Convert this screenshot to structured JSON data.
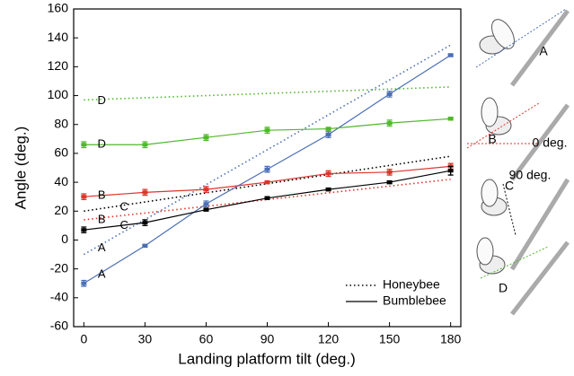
{
  "chart_data": {
    "type": "line",
    "xlabel": "Landing platform tilt (deg.)",
    "ylabel": "Angle (deg.)",
    "xlim": [
      -5,
      185
    ],
    "ylim": [
      -60,
      160
    ],
    "xticks": [
      0,
      30,
      60,
      90,
      120,
      150,
      180
    ],
    "yticks": [
      -60,
      -40,
      -20,
      0,
      20,
      40,
      60,
      80,
      100,
      120,
      140,
      160
    ],
    "legend": [
      {
        "name": "Honeybee",
        "dashed": true
      },
      {
        "name": "Bumblebee",
        "dashed": false
      }
    ],
    "series": [
      {
        "label": "A",
        "color": "#4a6fb5",
        "dashed": true,
        "x": [
          0,
          180
        ],
        "values": [
          -10,
          135
        ]
      },
      {
        "label": "B",
        "color": "#e0332b",
        "dashed": true,
        "x": [
          0,
          180
        ],
        "values": [
          14,
          42
        ]
      },
      {
        "label": "C",
        "color": "#000000",
        "dashed": true,
        "x": [
          0,
          180
        ],
        "values": [
          20,
          58
        ]
      },
      {
        "label": "D",
        "color": "#4fb82b",
        "dashed": true,
        "x": [
          0,
          180
        ],
        "values": [
          97,
          106
        ]
      },
      {
        "label": "A",
        "color": "#4a6fb5",
        "dashed": false,
        "x": [
          0,
          30,
          60,
          90,
          120,
          150,
          180
        ],
        "values": [
          -30,
          -4,
          25,
          49,
          73,
          101,
          128
        ],
        "errors": [
          2,
          1,
          2,
          2,
          2,
          2,
          1
        ]
      },
      {
        "label": "B",
        "color": "#e0332b",
        "dashed": false,
        "x": [
          0,
          30,
          60,
          90,
          120,
          150,
          180
        ],
        "values": [
          30,
          33,
          35,
          40,
          46,
          47,
          51
        ],
        "errors": [
          2,
          2,
          2,
          1,
          2,
          2,
          2
        ]
      },
      {
        "label": "C",
        "color": "#000000",
        "dashed": false,
        "x": [
          0,
          30,
          60,
          90,
          120,
          150,
          180
        ],
        "values": [
          7,
          12,
          21,
          29,
          35,
          40,
          48
        ],
        "errors": [
          2,
          2,
          1,
          1,
          1,
          1,
          3
        ]
      },
      {
        "label": "D",
        "color": "#4fb82b",
        "dashed": false,
        "x": [
          0,
          30,
          60,
          90,
          120,
          150,
          180
        ],
        "values": [
          66,
          66,
          71,
          76,
          77,
          81,
          84
        ],
        "errors": [
          2,
          2,
          2,
          2,
          1,
          2,
          1
        ]
      }
    ],
    "illustration_labels": [
      {
        "text": "A",
        "color": "#4a6fb5"
      },
      {
        "text": "B",
        "color": "#e0332b"
      },
      {
        "text": "0 deg.",
        "color": "#e0332b"
      },
      {
        "text": "90 deg.",
        "color": "#000000"
      },
      {
        "text": "C",
        "color": "#000000"
      },
      {
        "text": "D",
        "color": "#4fb82b"
      }
    ]
  }
}
